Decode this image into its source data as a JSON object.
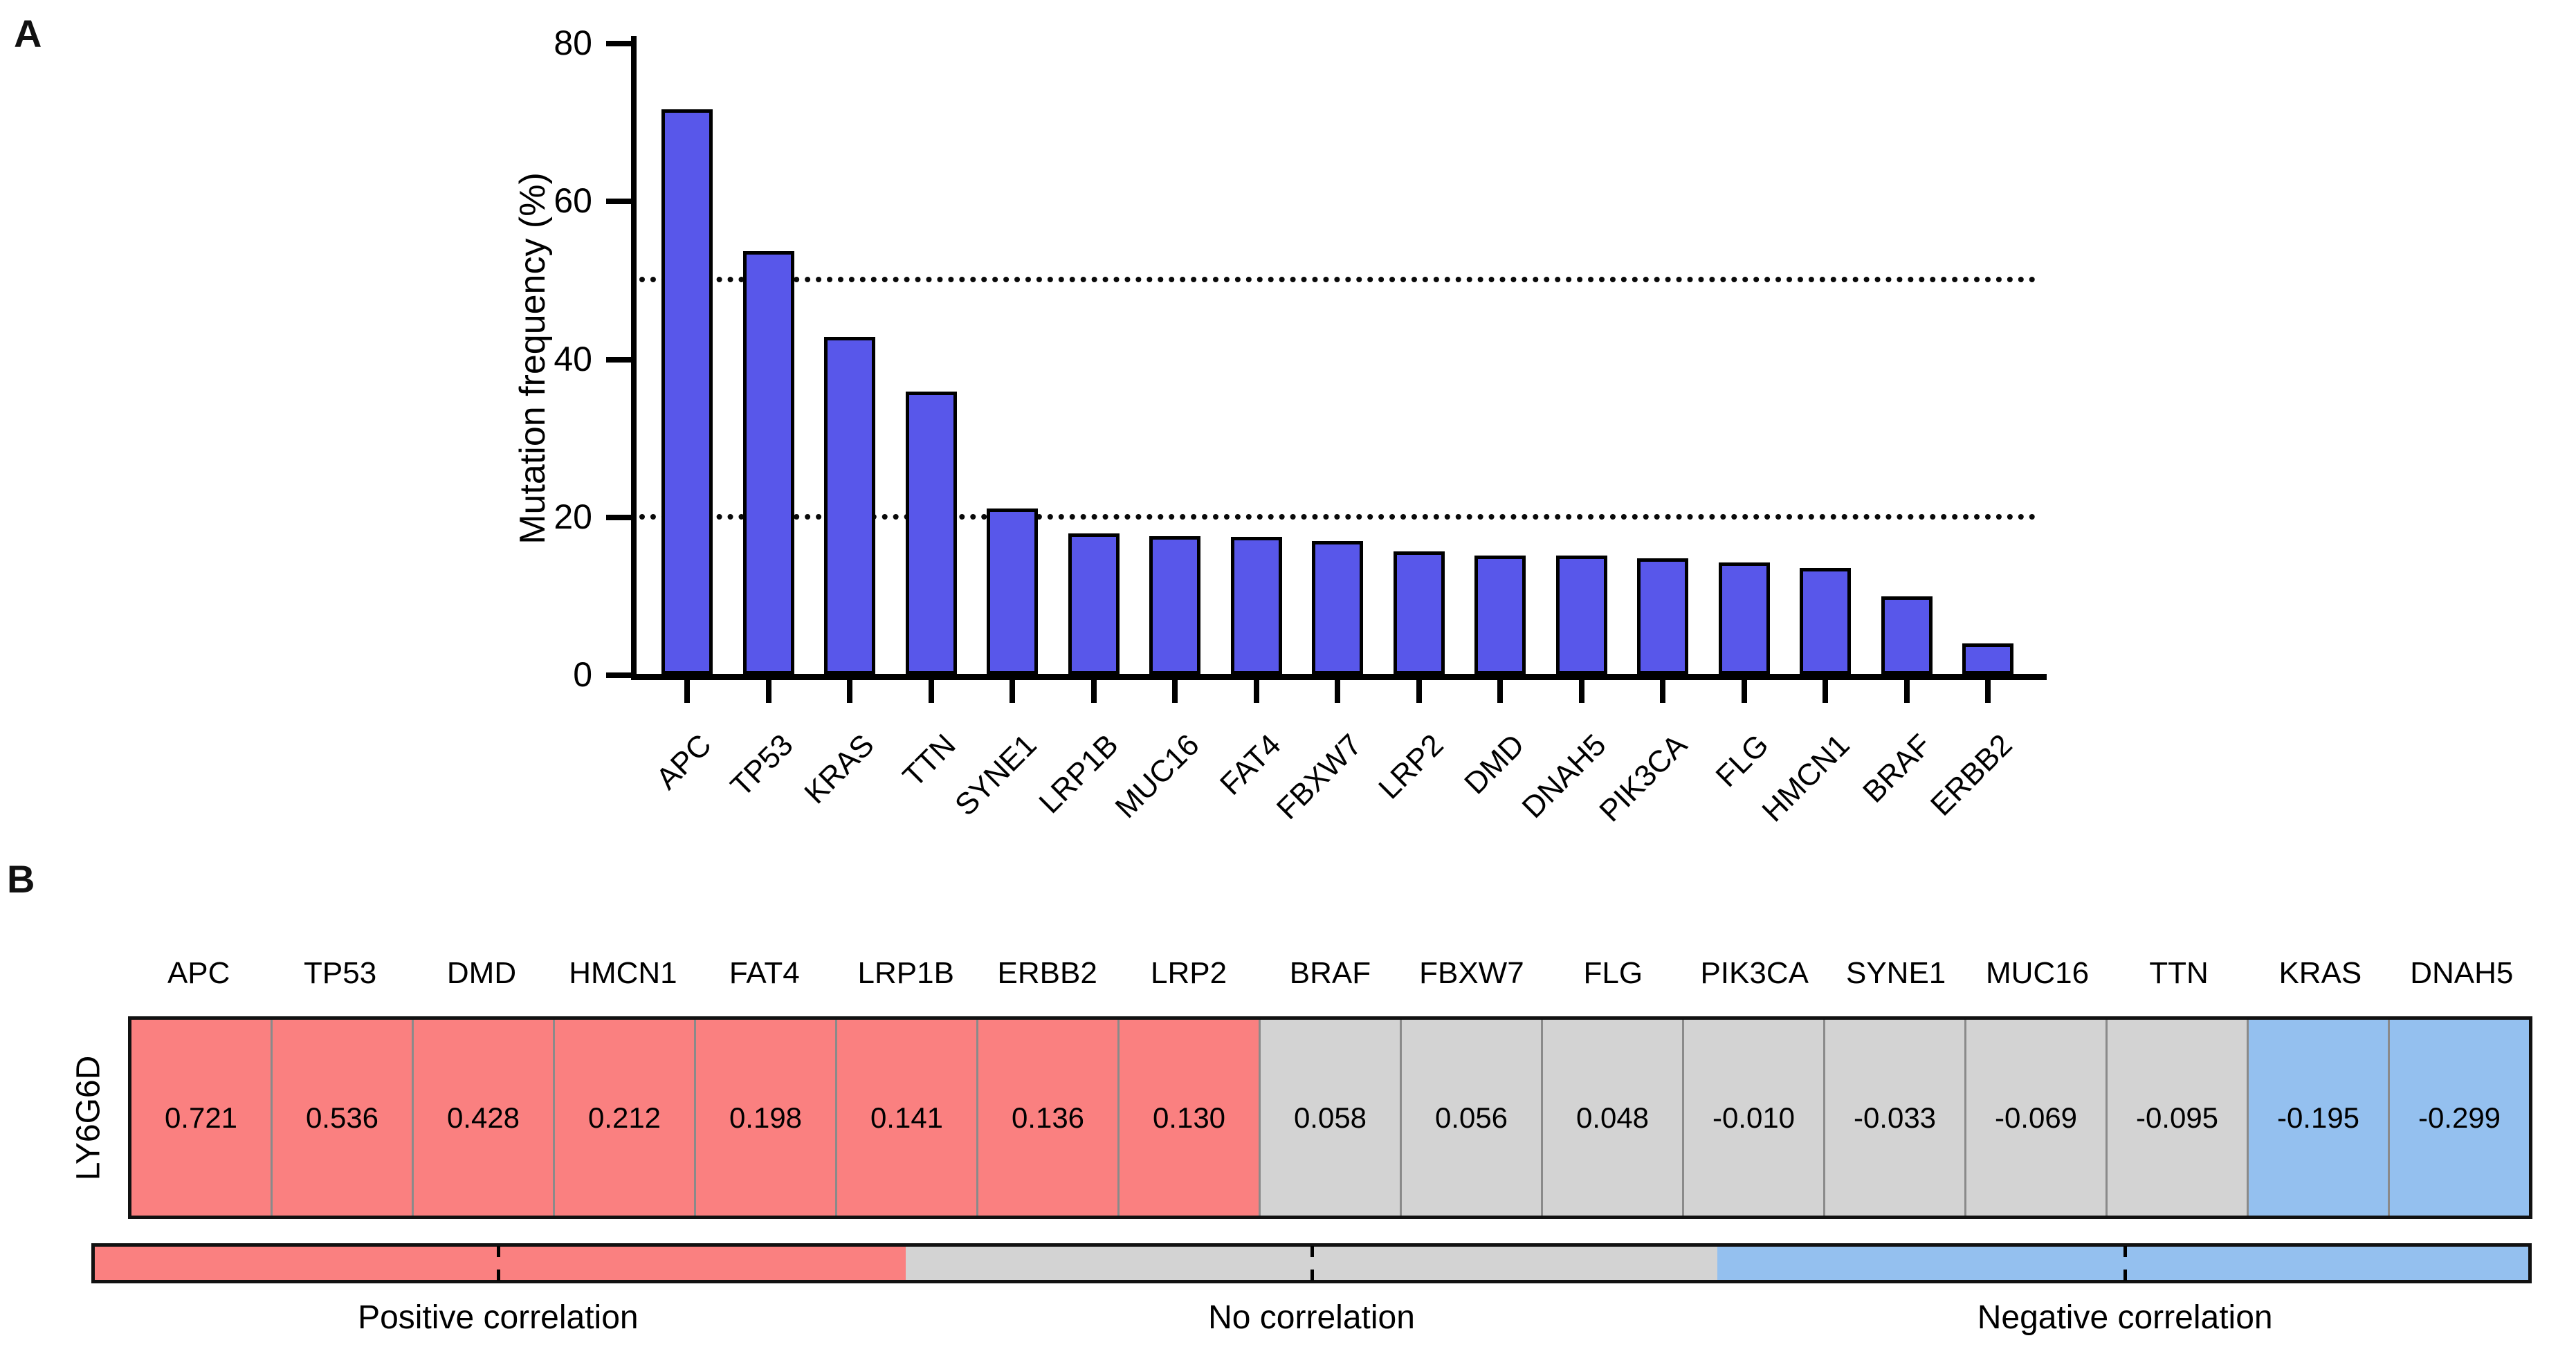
{
  "figure": {
    "panel_a_label": "A",
    "panel_b_label": "B"
  },
  "chart_data": [
    {
      "type": "bar",
      "panel": "A",
      "title": "",
      "xlabel": "",
      "ylabel": "Mutation frequency (%)",
      "ylim": [
        0,
        80
      ],
      "yticks": [
        0,
        20,
        40,
        60,
        80
      ],
      "reference_lines": [
        20,
        50
      ],
      "reference_line_style": "dotted",
      "grid": false,
      "legend_position": "none",
      "bar_color": "#5857EA",
      "bar_edge_color": "#000000",
      "categories": [
        "APC",
        "TP53",
        "KRAS",
        "TTN",
        "SYNE1",
        "LRP1B",
        "MUC16",
        "FAT4",
        "FBXW7",
        "LRP2",
        "DMD",
        "DNAH5",
        "PIK3CA",
        "FLG",
        "HMCN1",
        "BRAF",
        "ERBB2"
      ],
      "values": [
        71.6,
        53.6,
        42.8,
        35.8,
        21.0,
        17.9,
        17.5,
        17.4,
        16.9,
        15.6,
        15.1,
        15.1,
        14.7,
        14.2,
        13.5,
        9.9,
        3.9
      ]
    },
    {
      "type": "heatmap",
      "panel": "B",
      "row_label": "LY6G6D",
      "columns": [
        "APC",
        "TP53",
        "DMD",
        "HMCN1",
        "FAT4",
        "LRP1B",
        "ERBB2",
        "LRP2",
        "BRAF",
        "FBXW7",
        "FLG",
        "PIK3CA",
        "SYNE1",
        "MUC16",
        "TTN",
        "KRAS",
        "DNAH5"
      ],
      "values": [
        "0.721",
        "0.536",
        "0.428",
        "0.212",
        "0.198",
        "0.141",
        "0.136",
        "0.130",
        "0.058",
        "0.056",
        "0.048",
        "-0.010",
        "-0.033",
        "-0.069",
        "-0.095",
        "-0.195",
        "-0.299"
      ],
      "groups": [
        "positive",
        "positive",
        "positive",
        "positive",
        "positive",
        "positive",
        "positive",
        "positive",
        "none",
        "none",
        "none",
        "none",
        "none",
        "none",
        "none",
        "negative",
        "negative"
      ],
      "group_colors": {
        "positive": "#FA8080",
        "none": "#D3D3D3",
        "negative": "#94C0EF"
      },
      "legend": {
        "segments": [
          {
            "label": "Positive correlation",
            "color": "#FA8080"
          },
          {
            "label": "No correlation",
            "color": "#D3D3D3"
          },
          {
            "label": "Negative correlation",
            "color": "#94C0EF"
          }
        ]
      }
    }
  ]
}
